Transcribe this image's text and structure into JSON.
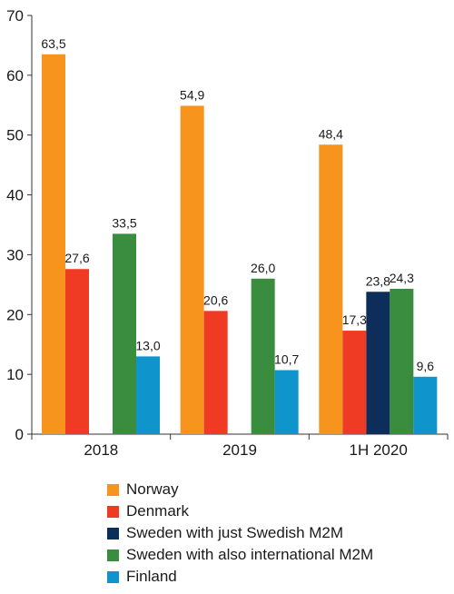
{
  "chart_data": {
    "type": "bar",
    "categories": [
      "2018",
      "2019",
      "1H 2020"
    ],
    "ylim": [
      0,
      70
    ],
    "y_ticks": [
      0,
      10,
      20,
      30,
      40,
      50,
      60,
      70
    ],
    "grid": false,
    "legend_position": "bottom",
    "series": [
      {
        "name": "Norway",
        "color": "#f7941d",
        "values": [
          63.5,
          54.9,
          48.4
        ],
        "labels": [
          "63,5",
          "54,9",
          "48,4"
        ]
      },
      {
        "name": "Denmark",
        "color": "#ef3b24",
        "values": [
          27.6,
          20.6,
          17.3
        ],
        "labels": [
          "27,6",
          "20,6",
          "17,3"
        ]
      },
      {
        "name": "Sweden with just Swedish M2M",
        "color": "#0d2d5a",
        "values": [
          null,
          null,
          23.8
        ],
        "labels": [
          "",
          "",
          "23,8"
        ]
      },
      {
        "name": "Sweden with also international M2M",
        "color": "#3a8d3f",
        "values": [
          33.5,
          26.0,
          24.3
        ],
        "labels": [
          "33,5",
          "26,0",
          "24,3"
        ]
      },
      {
        "name": "Finland",
        "color": "#0f95cc",
        "values": [
          13.0,
          10.7,
          9.6
        ],
        "labels": [
          "13,0",
          "10,7",
          "9,6"
        ]
      }
    ]
  }
}
